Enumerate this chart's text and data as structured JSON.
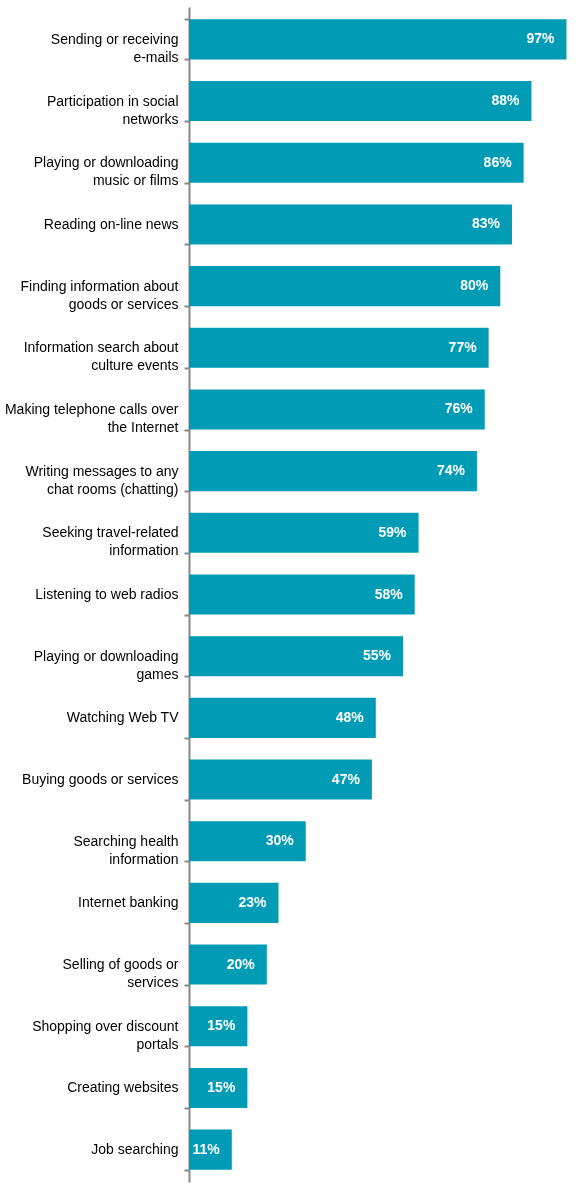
{
  "chart_data": {
    "type": "bar",
    "orientation": "horizontal",
    "color": "#009bb5",
    "categories": [
      "Sending or receiving e-mails",
      "Participation in social networks",
      "Playing or downloading music or films",
      "Reading on-line news",
      "Finding information about goods or services",
      "Information search about culture events",
      "Making telephone calls over the Internet",
      "Writing messages to any chat rooms (chatting)",
      "Seeking travel-related information",
      "Listening to web radios",
      "Playing or downloading games",
      "Watching Web TV",
      "Buying goods or services",
      "Searching health information",
      "Internet banking",
      "Selling of goods or services",
      "Shopping over discount portals",
      "Creating websites",
      "Job searching"
    ],
    "values": [
      97,
      88,
      86,
      83,
      80,
      77,
      76,
      74,
      59,
      58,
      55,
      48,
      47,
      30,
      23,
      20,
      15,
      15,
      11
    ],
    "value_labels": [
      "97%",
      "88%",
      "86%",
      "83%",
      "80%",
      "77%",
      "76%",
      "74%",
      "59%",
      "58%",
      "55%",
      "48%",
      "47%",
      "30%",
      "23%",
      "20%",
      "15%",
      "15%",
      "11%"
    ]
  }
}
